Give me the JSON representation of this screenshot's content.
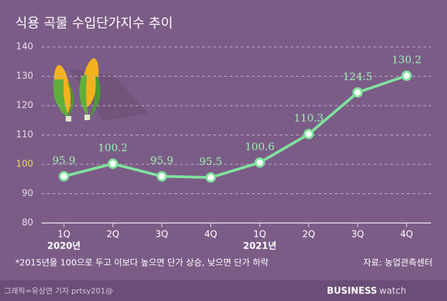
{
  "chart_data": {
    "type": "line",
    "title": "식용 곡물 수입단가지수 추이",
    "categories": [
      "1Q",
      "2Q",
      "3Q",
      "4Q",
      "1Q",
      "2Q",
      "3Q",
      "4Q"
    ],
    "year_labels": [
      "2020년",
      null,
      null,
      null,
      "2021년",
      null,
      null,
      null
    ],
    "series": [
      {
        "name": "수입단가지수",
        "color": "#7fe29c",
        "values": [
          95.9,
          100.2,
          95.9,
          95.5,
          100.6,
          110.3,
          124.5,
          130.2
        ]
      }
    ],
    "ylim": [
      80,
      140
    ],
    "yticks": [
      80,
      90,
      100,
      110,
      120,
      130,
      140
    ],
    "highlight_ytick": 100,
    "grid": true,
    "footnote": "*2015년을 100으로 두고 이보다 높으면 단가 상승, 낮으면 단가 하락",
    "source": "자료: 농업관측센터",
    "credit": "그래픽=유상연 기자 prtsy201@",
    "brand": {
      "bold": "BUSINESS",
      "light": "watch"
    }
  }
}
